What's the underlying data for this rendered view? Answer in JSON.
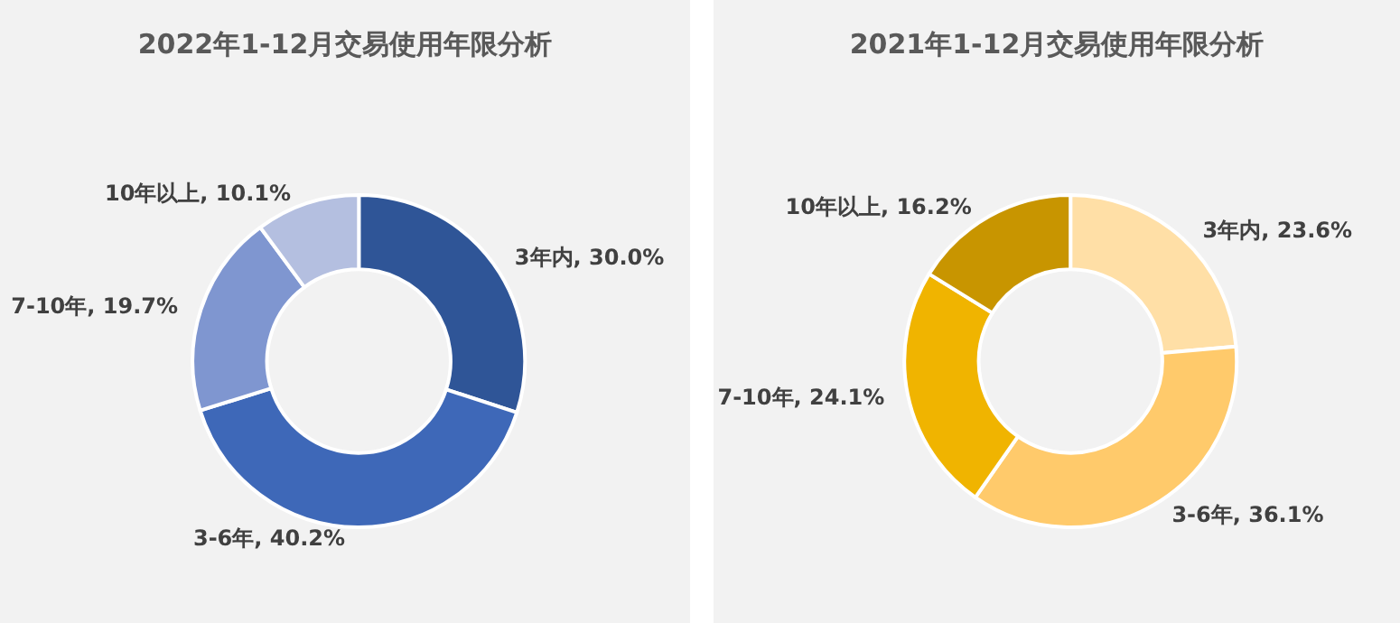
{
  "chart_data": [
    {
      "type": "donut",
      "title": "2022年1-12月交易使用年限分析",
      "categories": [
        "3年内",
        "3-6年",
        "7-10年",
        "10年以上"
      ],
      "values": [
        30.0,
        40.2,
        19.7,
        10.1
      ],
      "value_labels": [
        "30.0%",
        "40.2%",
        "19.7%",
        "10.1%"
      ],
      "colors": [
        "#2f5597",
        "#3e68b8",
        "#7f96d0",
        "#b4bfe0"
      ]
    },
    {
      "type": "donut",
      "title": "2021年1-12月交易使用年限分析",
      "categories": [
        "3年内",
        "3-6年",
        "7-10年",
        "10年以上"
      ],
      "values": [
        23.6,
        36.1,
        24.1,
        16.2
      ],
      "value_labels": [
        "23.6%",
        "36.1%",
        "24.1%",
        "16.2%"
      ],
      "colors": [
        "#ffdfa6",
        "#ffca6b",
        "#f0b400",
        "#c89500"
      ]
    }
  ]
}
